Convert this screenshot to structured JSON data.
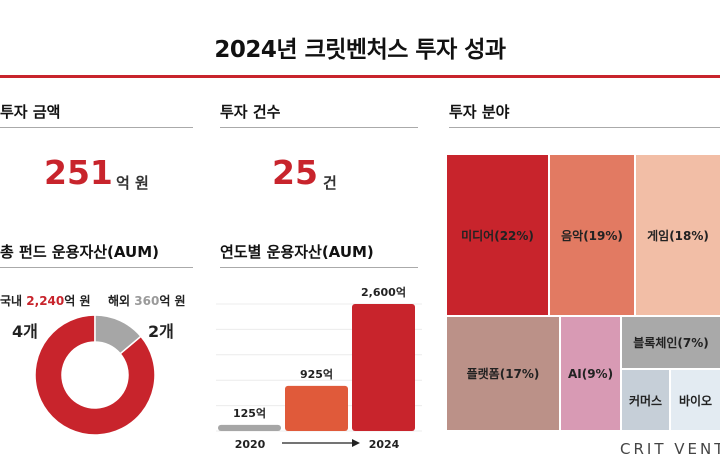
{
  "page_title": "2024년 크릿벤처스 투자 성과",
  "invest_amount": {
    "title": "투자 금액",
    "value": "251",
    "unit": "억 원"
  },
  "invest_count": {
    "title": "투자 건수",
    "value": "25",
    "unit": "건"
  },
  "aum_total": {
    "title": "총 펀드 운용자산(AUM)",
    "domestic": {
      "label_prefix": "국내",
      "value": "2,240",
      "label_suffix": "억 원",
      "count": "4개"
    },
    "overseas": {
      "label_prefix": "해외",
      "value": "360",
      "label_suffix": "억 원",
      "count": "2개"
    }
  },
  "aum_yearly": {
    "title": "연도별 운용자산(AUM)"
  },
  "invest_fields": {
    "title": "투자 분야"
  },
  "logo_text": "CRIT VENT",
  "colors": {
    "accent": "#c8242c",
    "gray": "#a6a6a6",
    "orange": "#e05a3a",
    "media": "#c8242c",
    "music": "#e27a62",
    "game": "#f2bea6",
    "platform": "#bb9188",
    "ai": "#d89ab4",
    "blockchain": "#a9a9a9",
    "commerce": "#c6cfd8",
    "bio": "#e3ebf2"
  },
  "chart_data": [
    {
      "type": "pie",
      "title": "총 펀드 운용자산(AUM)",
      "categories": [
        "국내",
        "해외"
      ],
      "values": [
        2240,
        360
      ],
      "unit": "억 원"
    },
    {
      "type": "bar",
      "title": "연도별 운용자산(AUM)",
      "categories": [
        "2020",
        "",
        "2024"
      ],
      "values": [
        125,
        925,
        2600
      ],
      "labels": [
        "125억",
        "925억",
        "2,600억"
      ],
      "x_tick_labels": [
        "2020",
        "2024"
      ]
    },
    {
      "type": "heatmap",
      "title": "투자 분야",
      "tiles": [
        {
          "name": "미디어",
          "label": "미디어(22%)",
          "value": 22
        },
        {
          "name": "음악",
          "label": "음악(19%)",
          "value": 19
        },
        {
          "name": "게임",
          "label": "게임(18%)",
          "value": 18
        },
        {
          "name": "플랫폼",
          "label": "플랫폼(17%)",
          "value": 17
        },
        {
          "name": "AI",
          "label": "AI(9%)",
          "value": 9
        },
        {
          "name": "블록체인",
          "label": "블록체인(7%)",
          "value": 7
        },
        {
          "name": "커머스",
          "label": "커머스",
          "value": null
        },
        {
          "name": "바이오",
          "label": "바이오",
          "value": null
        }
      ]
    }
  ]
}
